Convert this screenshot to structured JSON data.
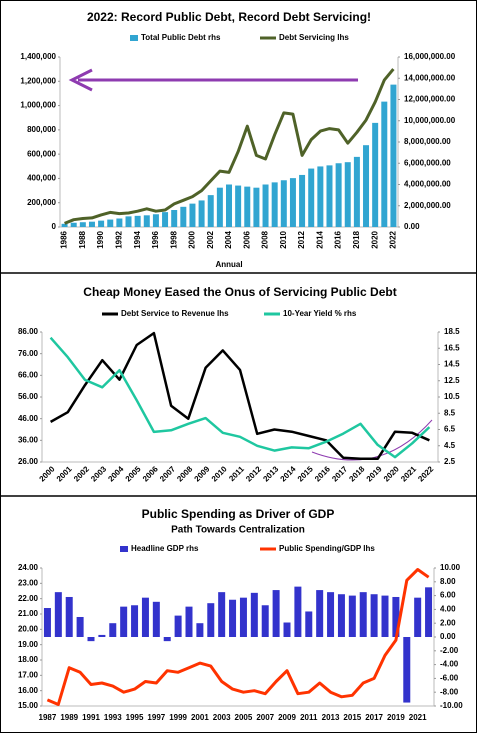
{
  "chart_data": [
    {
      "type": "combo",
      "title": "2022: Record Public Debt, Record Debt Servicing!",
      "x_label": "Annual",
      "categories": [
        "1986",
        null,
        "1988",
        null,
        "1990",
        null,
        "1992",
        null,
        "1994",
        null,
        "1996",
        null,
        "1998",
        null,
        "2000",
        null,
        "2002",
        null,
        "2004",
        null,
        "2006",
        null,
        "2008",
        null,
        "2010",
        null,
        "2012",
        null,
        "2014",
        null,
        "2016",
        null,
        "2018",
        null,
        "2020",
        null,
        "2022"
      ],
      "series": [
        {
          "name": "Total Public Debt rhs",
          "kind": "bar",
          "axis": "y2",
          "color": "#31a5d1",
          "values": [
            300000,
            400000,
            450000,
            500000,
            600000,
            700000,
            800000,
            1000000,
            1050000,
            1100000,
            1200000,
            1400000,
            1600000,
            1900000,
            2200000,
            2500000,
            3000000,
            3700000,
            4000000,
            3900000,
            3800000,
            3700000,
            4000000,
            4200000,
            4400000,
            4600000,
            4900000,
            5500000,
            5700000,
            5800000,
            6000000,
            6100000,
            6600000,
            7700000,
            9800000,
            11800000,
            13400000
          ]
        },
        {
          "name": "Debt Servicing lhs",
          "kind": "line",
          "color": "#4f6228",
          "values": [
            30000,
            60000,
            70000,
            75000,
            100000,
            120000,
            110000,
            115000,
            130000,
            150000,
            130000,
            140000,
            190000,
            220000,
            250000,
            300000,
            380000,
            460000,
            450000,
            620000,
            830000,
            590000,
            560000,
            760000,
            940000,
            930000,
            590000,
            720000,
            790000,
            810000,
            800000,
            690000,
            780000,
            880000,
            1030000,
            1210000,
            1300000
          ]
        }
      ],
      "ylim": [
        0,
        1400000
      ],
      "yticks": [
        0,
        {
          "value": 200000,
          "label": "200,000"
        },
        {
          "value": 400000,
          "label": "400,000"
        },
        {
          "value": 600000,
          "label": "600,000"
        },
        {
          "value": 800000,
          "label": "800,000"
        },
        {
          "value": 1000000,
          "label": "1,000,000"
        },
        {
          "value": 1200000,
          "label": "1,200,000"
        },
        {
          "value": 1400000,
          "label": "1,400,000"
        }
      ],
      "y2lim": [
        0,
        16000000
      ],
      "y2ticks": [
        {
          "value": 0,
          "label": "0.00"
        },
        {
          "value": 2000000,
          "label": "2,000,000.00"
        },
        {
          "value": 4000000,
          "label": "4,000,000.00"
        },
        {
          "value": 6000000,
          "label": "6,000,000.00"
        },
        {
          "value": 8000000,
          "label": "8,000,000.00"
        },
        {
          "value": 10000000,
          "label": "10,000,000.00"
        },
        {
          "value": 12000000,
          "label": "12,000,000.00"
        },
        {
          "value": 14000000,
          "label": "14,000,000.00"
        },
        {
          "value": 16000000,
          "label": "16,000,000.00"
        }
      ]
    },
    {
      "type": "line",
      "title": "Cheap Money Eased the Onus of Servicing Public Debt",
      "categories": [
        "2000",
        "2001",
        "2002",
        "2003",
        "2004",
        "2005",
        "2006",
        "2007",
        "2008",
        "2009",
        "2010",
        "2011",
        "2012",
        "2013",
        "2014",
        "2015",
        "2016",
        "2017",
        "2018",
        "2019",
        "2020",
        "2021",
        "2022"
      ],
      "series": [
        {
          "name": "Debt Service to Revenue lhs",
          "kind": "line",
          "color": "#000000",
          "values": [
            44.5,
            49,
            61.5,
            73,
            64,
            80,
            85.5,
            52,
            46,
            69.5,
            77.5,
            68.5,
            39,
            41,
            40,
            38,
            36,
            28,
            27.5,
            27.5,
            40,
            39.5,
            36
          ]
        },
        {
          "name": "10-Year Yield % rhs",
          "kind": "line",
          "axis": "y2",
          "color": "#1fc7a0",
          "values": [
            17.8,
            15.4,
            12.6,
            11.7,
            13.8,
            10.1,
            6.2,
            6.4,
            7.2,
            7.9,
            6.1,
            5.6,
            4.5,
            3.9,
            4.3,
            4.2,
            5,
            6,
            7.2,
            4.6,
            3.1,
            4.8,
            6.8
          ]
        }
      ],
      "ylim": [
        26,
        86
      ],
      "yticks": [
        {
          "value": 26,
          "label": "26.00"
        },
        {
          "value": 36,
          "label": "36.00"
        },
        {
          "value": 46,
          "label": "46.00"
        },
        {
          "value": 56,
          "label": "56.00"
        },
        {
          "value": 66,
          "label": "66.00"
        },
        {
          "value": 76,
          "label": "76.00"
        },
        {
          "value": 86,
          "label": "86.00"
        }
      ],
      "y2lim": [
        2.5,
        18.5
      ],
      "y2ticks": [
        2.5,
        4.5,
        6.5,
        8.5,
        10.5,
        12.5,
        14.5,
        16.5,
        18.5
      ]
    },
    {
      "type": "combo",
      "title": "Public Spending as Driver of GDP",
      "subtitle": "Path Towards Centralization",
      "categories": [
        "1987",
        null,
        "1989",
        null,
        "1991",
        null,
        "1993",
        null,
        "1995",
        null,
        "1997",
        null,
        "1999",
        null,
        "2001",
        null,
        "2003",
        null,
        "2005",
        null,
        "2007",
        null,
        "2009",
        null,
        "2011",
        null,
        "2013",
        null,
        "2015",
        null,
        "2017",
        null,
        "2019",
        null,
        "2021",
        null
      ],
      "series": [
        {
          "name": "Headline GDP rhs",
          "kind": "bar",
          "axis": "y2",
          "color": "#3333cc",
          "values": [
            4.2,
            6.5,
            5.8,
            2.9,
            -0.6,
            0.3,
            2,
            4.4,
            4.6,
            5.7,
            5.1,
            -0.6,
            3.1,
            4.4,
            2,
            4.9,
            6.5,
            5.4,
            5.7,
            6.4,
            4.6,
            6.8,
            2.1,
            7.3,
            3.7,
            6.8,
            6.5,
            6.2,
            6,
            6.5,
            6.2,
            6,
            5.8,
            -9.5,
            5.7,
            7.2
          ]
        },
        {
          "name": "Public Spending/GDP lhs",
          "kind": "line",
          "color": "#ff3300",
          "values": [
            15.4,
            15.1,
            17.5,
            17.2,
            16.4,
            16.5,
            16.3,
            15.9,
            16.1,
            16.6,
            16.5,
            17.3,
            17.2,
            17.5,
            17.8,
            17.6,
            16.6,
            16.1,
            15.9,
            16,
            15.8,
            16.6,
            17.3,
            15.8,
            15.9,
            16.5,
            15.9,
            15.6,
            15.7,
            16.5,
            16.8,
            18.3,
            19.3,
            23.2,
            23.9,
            23.4
          ]
        }
      ],
      "ylim": [
        15,
        24
      ],
      "yticks": [
        {
          "value": 15,
          "label": "15.00"
        },
        {
          "value": 16,
          "label": "16.00"
        },
        {
          "value": 17,
          "label": "17.00"
        },
        {
          "value": 18,
          "label": "18.00"
        },
        {
          "value": 19,
          "label": "19.00"
        },
        {
          "value": 20,
          "label": "20.00"
        },
        {
          "value": 21,
          "label": "21.00"
        },
        {
          "value": 22,
          "label": "22.00"
        },
        {
          "value": 23,
          "label": "23.00"
        },
        {
          "value": 24,
          "label": "24.00"
        }
      ],
      "y2lim": [
        -10,
        10
      ],
      "y2ticks": [
        {
          "value": -10,
          "label": "-10.00"
        },
        {
          "value": -8,
          "label": "-8.00"
        },
        {
          "value": -6,
          "label": "-6.00"
        },
        {
          "value": -4,
          "label": "-4.00"
        },
        {
          "value": -2,
          "label": "-2.00"
        },
        {
          "value": 0,
          "label": "0.00"
        },
        {
          "value": 2,
          "label": "2.00"
        },
        {
          "value": 4,
          "label": "4.00"
        },
        {
          "value": 6,
          "label": "6.00"
        },
        {
          "value": 8,
          "label": "8.00"
        },
        {
          "value": 10,
          "label": "10.00"
        }
      ]
    }
  ]
}
